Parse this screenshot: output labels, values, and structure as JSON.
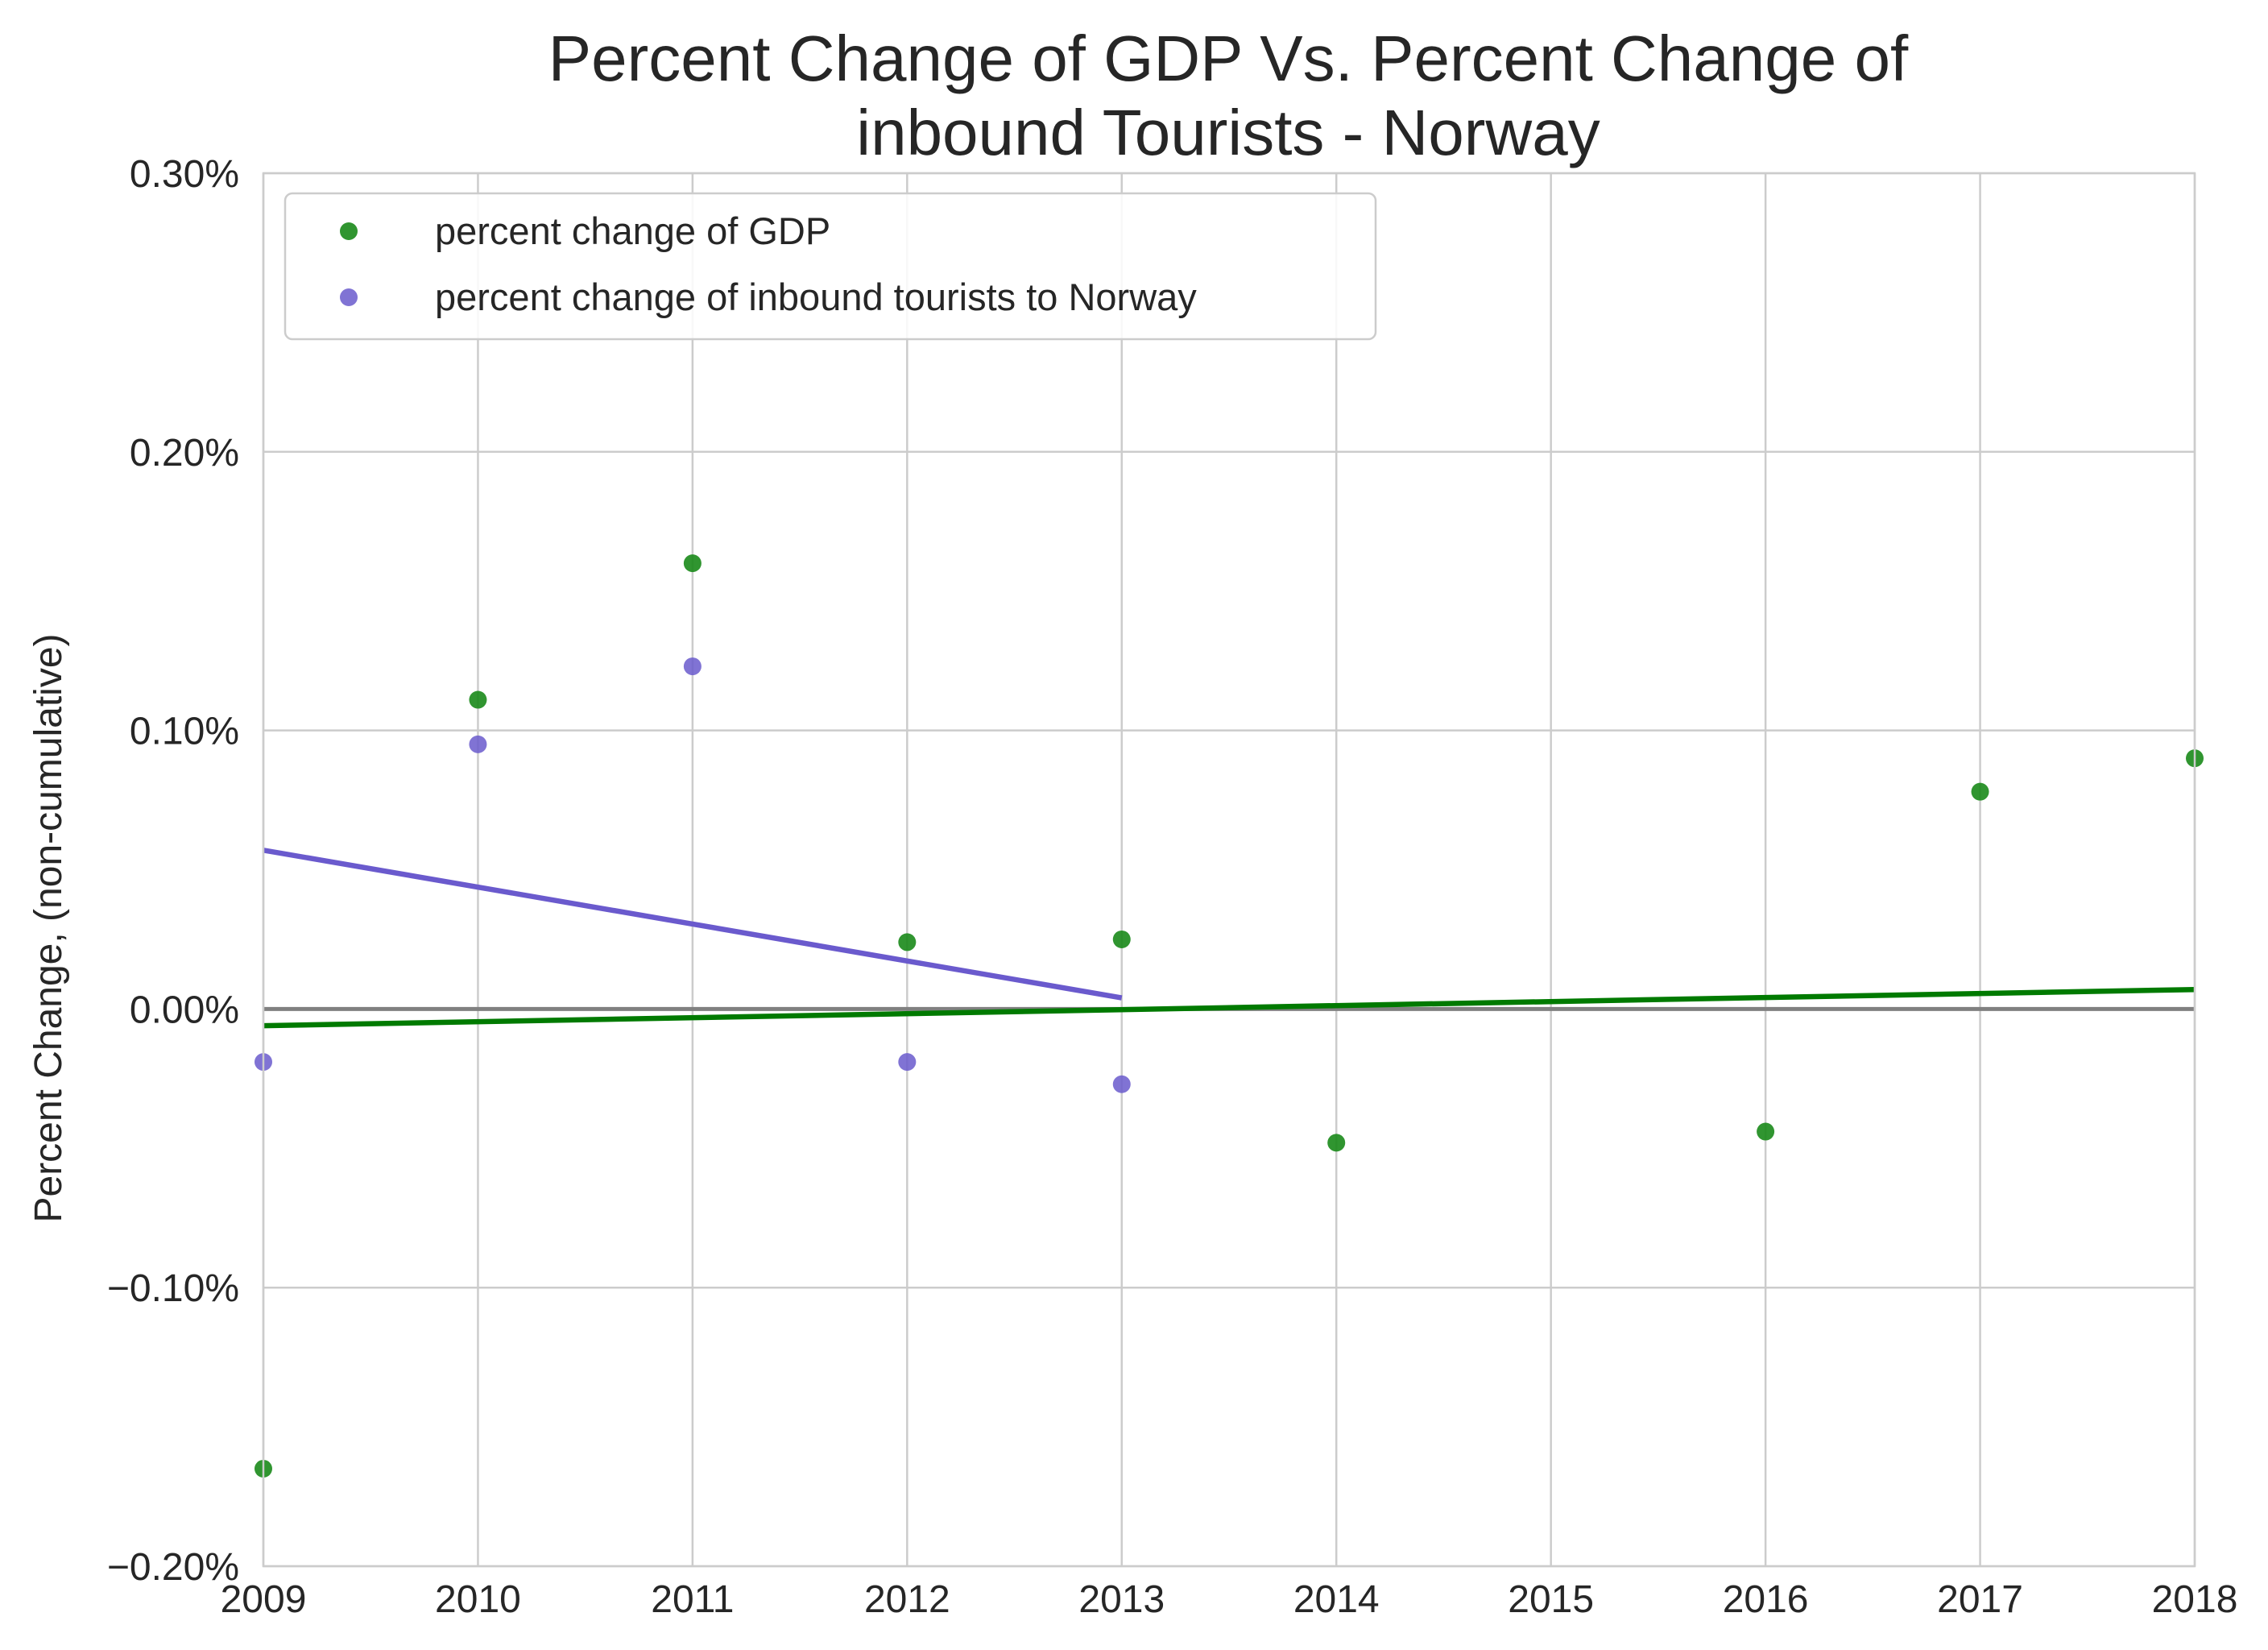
{
  "chart_data": {
    "type": "scatter",
    "title_line1": "Percent Change of GDP Vs. Percent Change of",
    "title_line2": "inbound Tourists - Norway",
    "xlabel": "",
    "ylabel": "Percent Change, (non-cumulative)",
    "xlim": [
      2009,
      2018
    ],
    "ylim": [
      -0.2,
      0.3
    ],
    "x_ticks": [
      2009,
      2010,
      2011,
      2012,
      2013,
      2014,
      2015,
      2016,
      2017,
      2018
    ],
    "x_tick_labels": [
      "2009",
      "2010",
      "2011",
      "2012",
      "2013",
      "2014",
      "2015",
      "2016",
      "2017",
      "2018"
    ],
    "y_ticks": [
      -0.2,
      -0.1,
      0.0,
      0.1,
      0.2,
      0.3
    ],
    "y_tick_labels": [
      "−0.20%",
      "−0.10%",
      "0.00%",
      "0.10%",
      "0.20%",
      "0.30%"
    ],
    "grid": true,
    "legend_position": "top-left",
    "zero_line": {
      "y": 0,
      "color": "#808080"
    },
    "series": [
      {
        "name": "percent change of GDP",
        "color": "#1a8a1a",
        "x": [
          2009,
          2010,
          2011,
          2012,
          2013,
          2014,
          2016,
          2017,
          2018
        ],
        "y": [
          -0.165,
          0.111,
          0.16,
          0.024,
          0.025,
          -0.048,
          -0.044,
          0.078,
          0.09
        ],
        "trend": {
          "color": "#007a00",
          "x": [
            2009,
            2018
          ],
          "y": [
            -0.006,
            0.007
          ]
        }
      },
      {
        "name": "percent change of inbound tourists to Norway",
        "color": "#6a5acd",
        "x": [
          2009,
          2010,
          2011,
          2012,
          2013
        ],
        "y": [
          -0.019,
          0.095,
          0.123,
          -0.019,
          -0.027
        ],
        "trend": {
          "color": "#6a5acd",
          "x": [
            2009,
            2013
          ],
          "y": [
            0.057,
            0.004
          ]
        }
      }
    ]
  }
}
